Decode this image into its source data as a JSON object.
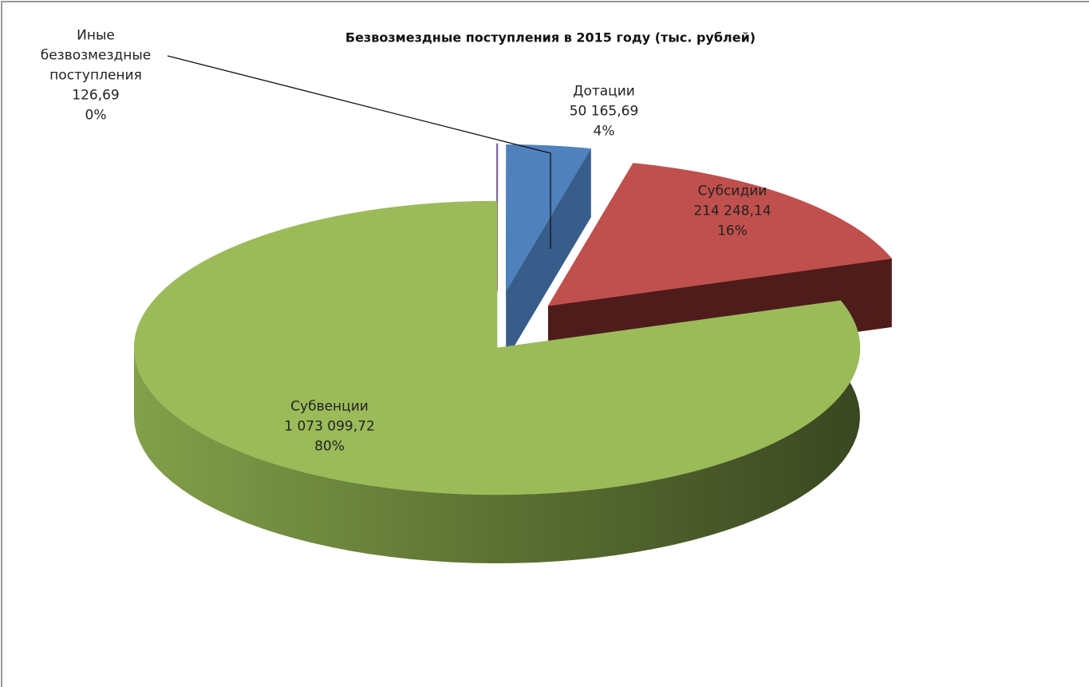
{
  "chart_data": {
    "type": "pie3d",
    "title": "Безвозмездные поступления в 2015 году (тыс. рублей)",
    "categories": [
      "Иные безвозмездные поступления",
      "Дотации",
      "Субсидии",
      "Субвенции"
    ],
    "values": [
      126.69,
      50165.69,
      214248.14,
      1073099.72
    ],
    "value_labels": [
      "126,69",
      "50 165,69",
      "214 248,14",
      "1 073 099,72"
    ],
    "percent_labels": [
      "0%",
      "4%",
      "16%",
      "80%"
    ],
    "colors": [
      "#8064a2",
      "#4f81bd",
      "#c0504d",
      "#9bbb59"
    ],
    "side_colors": [
      "#5c4776",
      "#385d8a",
      "#4e1c1b",
      "#3f4c24"
    ],
    "exploded": [
      true,
      true,
      true,
      false
    ]
  }
}
